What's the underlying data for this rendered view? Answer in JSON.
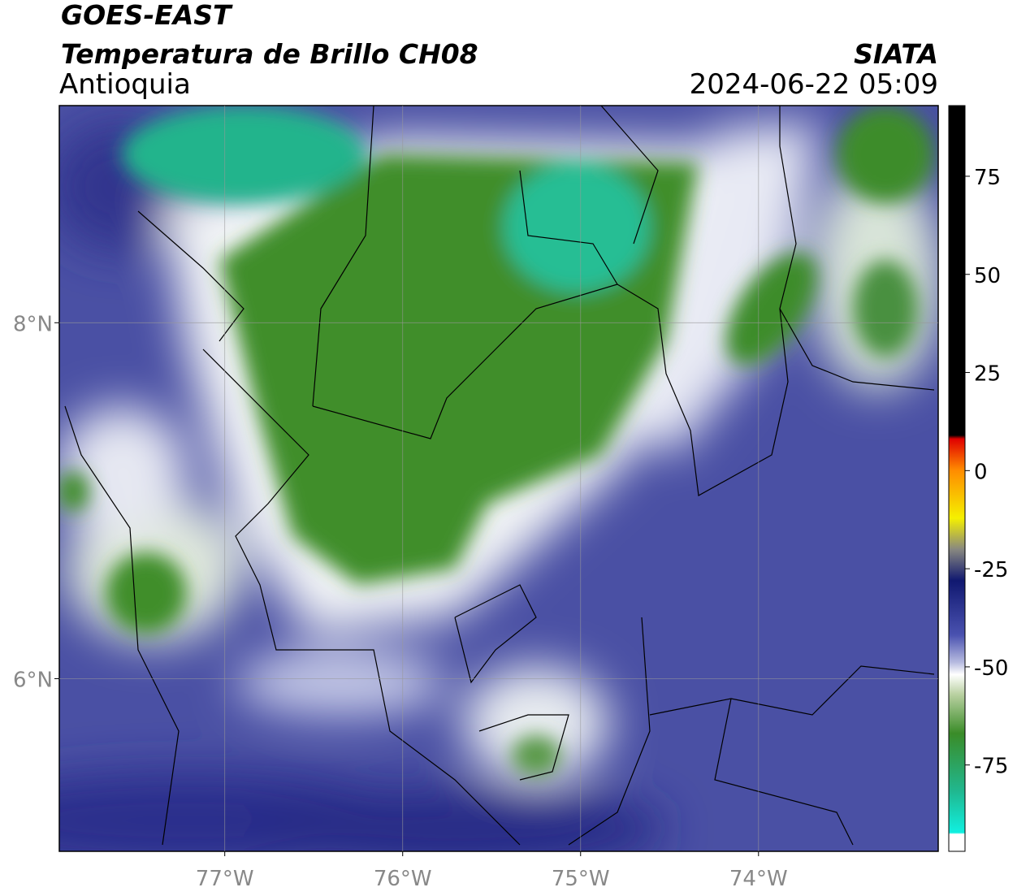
{
  "header": {
    "title": "GOES-EAST",
    "subtitle": "Temperatura de Brillo CH08",
    "region": "Antioquia",
    "source": "SIATA",
    "datetime": "2024-06-22 05:09"
  },
  "map": {
    "xlim": [
      -77.93,
      -72.99
    ],
    "ylim": [
      5.03,
      9.22
    ],
    "xticks": [
      {
        "value": -77,
        "label": "77°W"
      },
      {
        "value": -76,
        "label": "76°W"
      },
      {
        "value": -75,
        "label": "75°W"
      },
      {
        "value": -74,
        "label": "74°W"
      }
    ],
    "yticks": [
      {
        "value": 8,
        "label": "8°N"
      },
      {
        "value": 6,
        "label": "6°N"
      }
    ],
    "grid": true
  },
  "colorbar": {
    "lim": [
      -97,
      93
    ],
    "ticks": [
      75,
      50,
      25,
      0,
      -25,
      -50,
      -75
    ]
  }
}
